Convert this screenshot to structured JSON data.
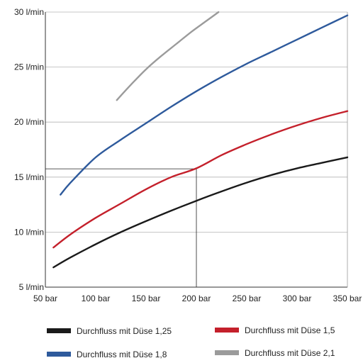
{
  "chart_data": {
    "type": "line",
    "title": "",
    "xlabel": "",
    "ylabel": "",
    "xlim": [
      50,
      350
    ],
    "ylim": [
      5,
      30
    ],
    "grid": true,
    "legend_position": "bottom",
    "x_ticks": [
      {
        "value": 50,
        "label": "50 bar"
      },
      {
        "value": 100,
        "label": "100 bar"
      },
      {
        "value": 150,
        "label": "150 bar"
      },
      {
        "value": 200,
        "label": "200 bar"
      },
      {
        "value": 250,
        "label": "250 bar"
      },
      {
        "value": 300,
        "label": "300 bar"
      },
      {
        "value": 350,
        "label": "350 bar"
      }
    ],
    "y_ticks": [
      {
        "value": 5,
        "label": "5 l/min"
      },
      {
        "value": 10,
        "label": "10 l/min"
      },
      {
        "value": 15,
        "label": "15 l/min"
      },
      {
        "value": 20,
        "label": "20 l/min"
      },
      {
        "value": 25,
        "label": "25 l/min"
      },
      {
        "value": 30,
        "label": "30 l/min"
      }
    ],
    "reference_point": {
      "x": 200,
      "y": 15.75
    },
    "series": [
      {
        "name": "Durchfluss  mit Düse 1,25",
        "color": "#1a1a1a",
        "x": [
          58,
          75,
          100,
          125,
          150,
          175,
          200,
          225,
          250,
          275,
          300,
          325,
          350
        ],
        "y": [
          6.8,
          7.7,
          8.9,
          10.0,
          11.0,
          11.95,
          12.85,
          13.7,
          14.5,
          15.2,
          15.8,
          16.3,
          16.8
        ]
      },
      {
        "name": "Durchfluss  mit Düse 1,5",
        "color": "#c4202b",
        "x": [
          58,
          75,
          100,
          125,
          150,
          175,
          200,
          225,
          250,
          275,
          300,
          325,
          350
        ],
        "y": [
          8.6,
          9.8,
          11.3,
          12.6,
          13.9,
          15.0,
          15.8,
          17.0,
          18.0,
          18.9,
          19.7,
          20.4,
          21.0
        ]
      },
      {
        "name": "Durchfluss  mit Düse 1,8",
        "color": "#2e5a9c",
        "x": [
          65,
          75,
          100,
          125,
          150,
          175,
          200,
          225,
          250,
          275,
          300,
          325,
          350
        ],
        "y": [
          13.4,
          14.5,
          16.8,
          18.4,
          19.9,
          21.4,
          22.8,
          24.1,
          25.3,
          26.4,
          27.5,
          28.6,
          29.7
        ]
      },
      {
        "name": "Durchfluss  mit Düse 2,1",
        "color": "#9b9b9b",
        "x": [
          121,
          135,
          150,
          165,
          180,
          195,
          210,
          222
        ],
        "y": [
          22.0,
          23.4,
          24.8,
          26.0,
          27.1,
          28.2,
          29.2,
          30.0
        ]
      }
    ]
  }
}
